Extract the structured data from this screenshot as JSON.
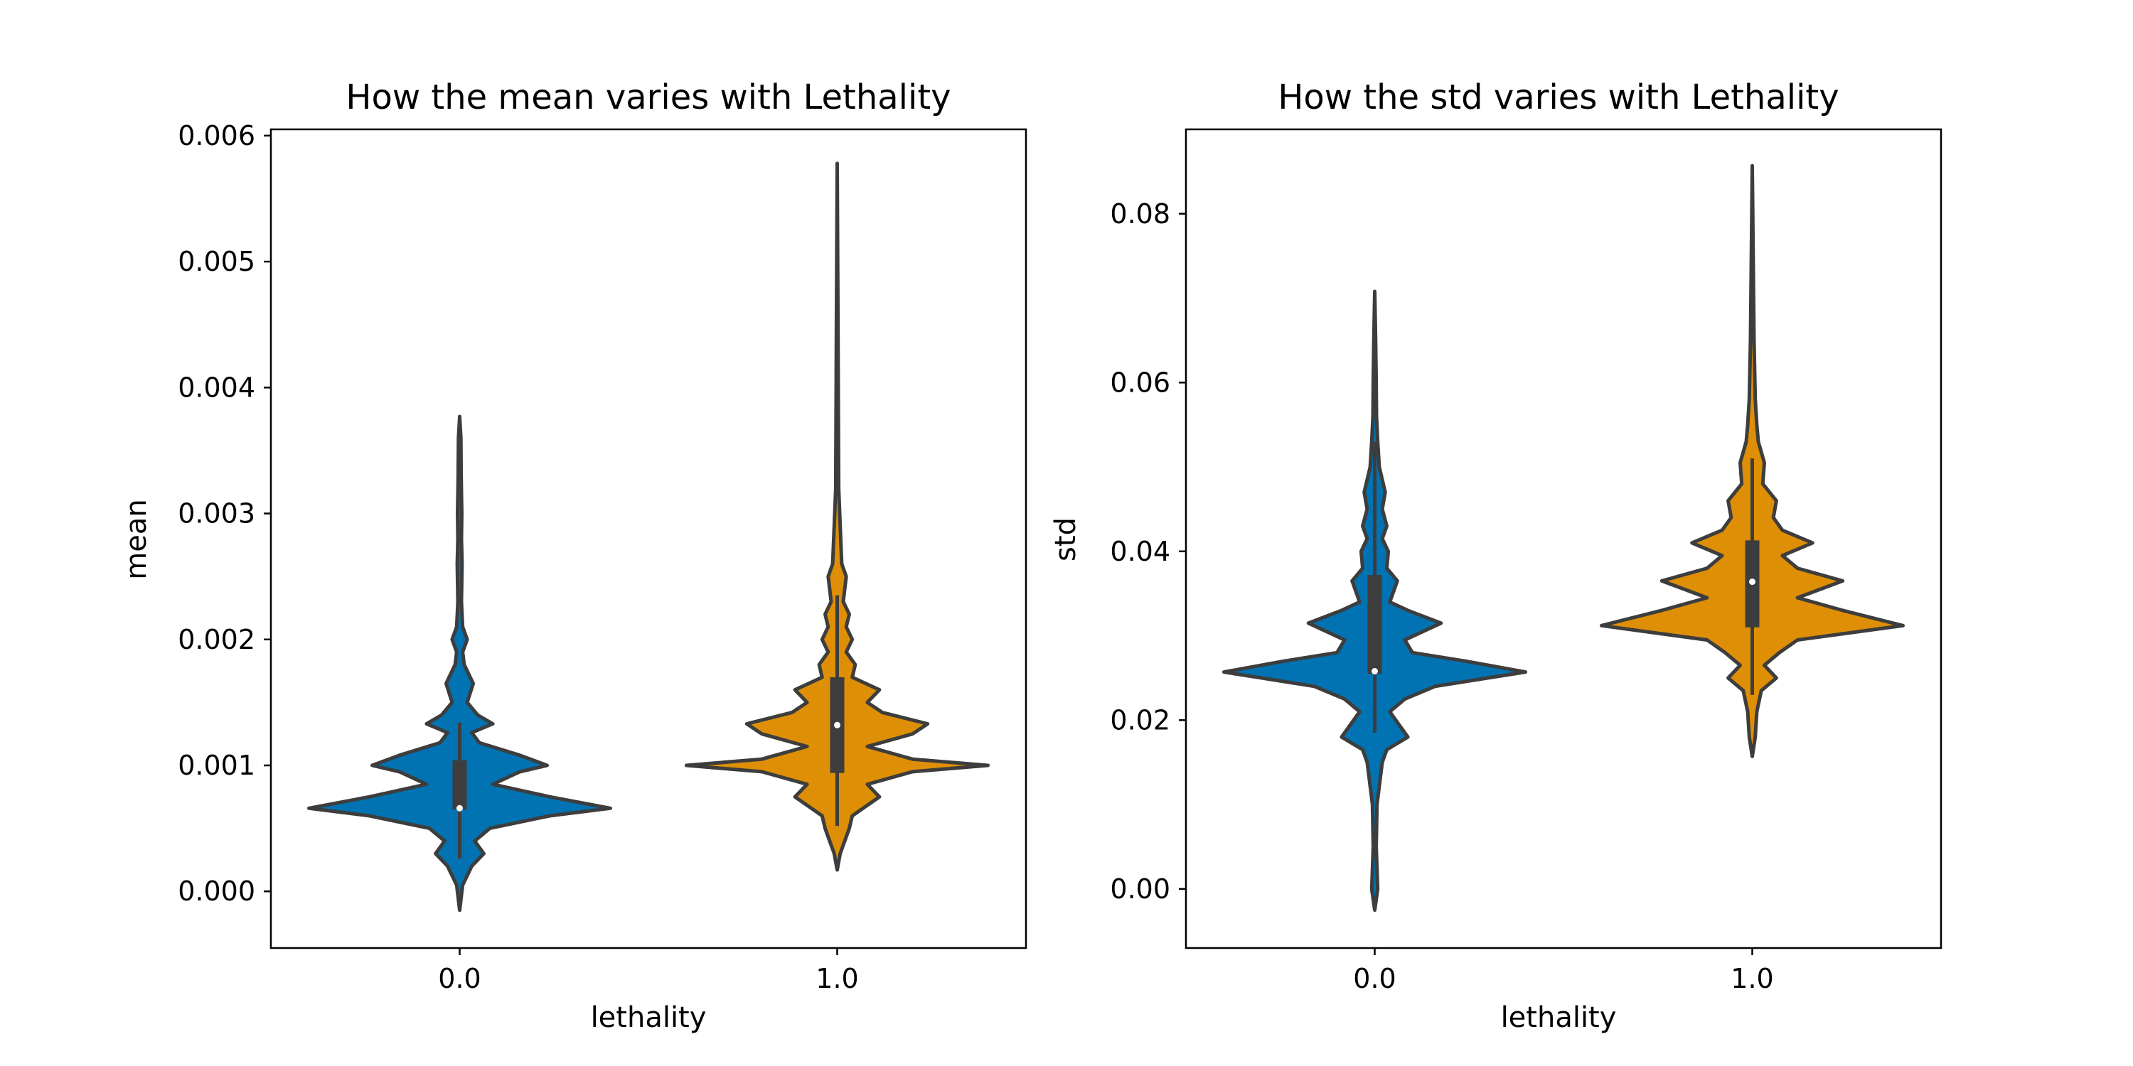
{
  "chart_data": [
    {
      "type": "violin",
      "title": "How the mean varies with Lethality",
      "xlabel": "lethality",
      "ylabel": "mean",
      "categories": [
        "0.0",
        "1.0"
      ],
      "ylim": [
        -0.00045,
        0.00605
      ],
      "yticks": [
        "0.000",
        "0.001",
        "0.002",
        "0.003",
        "0.004",
        "0.005",
        "0.006"
      ],
      "colors": [
        "#0173b2",
        "#de8f05"
      ],
      "series": [
        {
          "category": "0.0",
          "min": 0.00026,
          "q1": 0.00065,
          "median": 0.00066,
          "q3": 0.00104,
          "max": 0.00134,
          "range": [
            -0.00015,
            0.00377
          ],
          "density": [
            [
              -0.00015,
              0.0
            ],
            [
              5e-05,
              0.02
            ],
            [
              0.0002,
              0.08
            ],
            [
              0.0003,
              0.16
            ],
            [
              0.0004,
              0.1
            ],
            [
              0.0005,
              0.2
            ],
            [
              0.0006,
              0.6
            ],
            [
              0.00066,
              1.0
            ],
            [
              0.00075,
              0.6
            ],
            [
              0.00085,
              0.22
            ],
            [
              0.00095,
              0.4
            ],
            [
              0.001,
              0.58
            ],
            [
              0.00108,
              0.4
            ],
            [
              0.00118,
              0.13
            ],
            [
              0.00126,
              0.08
            ],
            [
              0.00133,
              0.22
            ],
            [
              0.0014,
              0.12
            ],
            [
              0.0015,
              0.05
            ],
            [
              0.00165,
              0.09
            ],
            [
              0.0018,
              0.03
            ],
            [
              0.0019,
              0.02
            ],
            [
              0.002,
              0.05
            ],
            [
              0.0021,
              0.02
            ],
            [
              0.0023,
              0.012
            ],
            [
              0.0026,
              0.016
            ],
            [
              0.0028,
              0.012
            ],
            [
              0.003,
              0.014
            ],
            [
              0.0033,
              0.01
            ],
            [
              0.0036,
              0.008
            ],
            [
              0.00377,
              0.0
            ]
          ]
        },
        {
          "category": "1.0",
          "min": 0.00052,
          "q1": 0.00094,
          "median": 0.00132,
          "q3": 0.0017,
          "max": 0.00235,
          "range": [
            0.00017,
            0.00578
          ],
          "density": [
            [
              0.00017,
              0.0
            ],
            [
              0.0003,
              0.02
            ],
            [
              0.0004,
              0.05
            ],
            [
              0.0005,
              0.08
            ],
            [
              0.0006,
              0.1
            ],
            [
              0.00075,
              0.28
            ],
            [
              0.00085,
              0.2
            ],
            [
              0.00095,
              0.5
            ],
            [
              0.001,
              1.0
            ],
            [
              0.00105,
              0.5
            ],
            [
              0.00115,
              0.2
            ],
            [
              0.00125,
              0.5
            ],
            [
              0.00133,
              0.6
            ],
            [
              0.00142,
              0.3
            ],
            [
              0.0015,
              0.2
            ],
            [
              0.0016,
              0.28
            ],
            [
              0.0017,
              0.1
            ],
            [
              0.0018,
              0.12
            ],
            [
              0.0019,
              0.06
            ],
            [
              0.002,
              0.1
            ],
            [
              0.0021,
              0.06
            ],
            [
              0.0022,
              0.08
            ],
            [
              0.0023,
              0.04
            ],
            [
              0.0025,
              0.06
            ],
            [
              0.0026,
              0.03
            ],
            [
              0.0029,
              0.02
            ],
            [
              0.0032,
              0.01
            ],
            [
              0.0037,
              0.008
            ],
            [
              0.0045,
              0.005
            ],
            [
              0.00578,
              0.0
            ]
          ]
        }
      ]
    },
    {
      "type": "violin",
      "title": "How the std varies with Lethality",
      "xlabel": "lethality",
      "ylabel": "std",
      "categories": [
        "0.0",
        "1.0"
      ],
      "ylim": [
        -0.007,
        0.09
      ],
      "yticks": [
        "0.00",
        "0.02",
        "0.04",
        "0.06",
        "0.08"
      ],
      "colors": [
        "#0173b2",
        "#de8f05"
      ],
      "series": [
        {
          "category": "0.0",
          "min": 0.0185,
          "q1": 0.0255,
          "median": 0.0258,
          "q3": 0.0372,
          "max": 0.053,
          "range": [
            -0.0025,
            0.0708
          ],
          "density": [
            [
              -0.0025,
              0.0
            ],
            [
              0.0,
              0.02
            ],
            [
              0.005,
              0.01
            ],
            [
              0.01,
              0.015
            ],
            [
              0.015,
              0.05
            ],
            [
              0.0165,
              0.08
            ],
            [
              0.018,
              0.22
            ],
            [
              0.0195,
              0.16
            ],
            [
              0.021,
              0.1
            ],
            [
              0.0225,
              0.2
            ],
            [
              0.024,
              0.4
            ],
            [
              0.0257,
              1.0
            ],
            [
              0.027,
              0.6
            ],
            [
              0.028,
              0.25
            ],
            [
              0.0295,
              0.2
            ],
            [
              0.0315,
              0.44
            ],
            [
              0.033,
              0.22
            ],
            [
              0.034,
              0.1
            ],
            [
              0.0365,
              0.15
            ],
            [
              0.038,
              0.08
            ],
            [
              0.04,
              0.09
            ],
            [
              0.0415,
              0.05
            ],
            [
              0.043,
              0.08
            ],
            [
              0.045,
              0.05
            ],
            [
              0.047,
              0.07
            ],
            [
              0.05,
              0.03
            ],
            [
              0.053,
              0.02
            ],
            [
              0.056,
              0.012
            ],
            [
              0.06,
              0.01
            ],
            [
              0.065,
              0.006
            ],
            [
              0.0708,
              0.0
            ]
          ]
        },
        {
          "category": "1.0",
          "min": 0.023,
          "q1": 0.031,
          "median": 0.0364,
          "q3": 0.0413,
          "max": 0.051,
          "range": [
            0.0157,
            0.0857
          ],
          "density": [
            [
              0.0157,
              0.0
            ],
            [
              0.018,
              0.02
            ],
            [
              0.021,
              0.03
            ],
            [
              0.0235,
              0.06
            ],
            [
              0.025,
              0.16
            ],
            [
              0.0265,
              0.08
            ],
            [
              0.028,
              0.18
            ],
            [
              0.0295,
              0.3
            ],
            [
              0.0312,
              1.0
            ],
            [
              0.033,
              0.6
            ],
            [
              0.0345,
              0.3
            ],
            [
              0.0365,
              0.6
            ],
            [
              0.038,
              0.3
            ],
            [
              0.0395,
              0.2
            ],
            [
              0.041,
              0.4
            ],
            [
              0.0425,
              0.2
            ],
            [
              0.044,
              0.14
            ],
            [
              0.046,
              0.16
            ],
            [
              0.048,
              0.07
            ],
            [
              0.0505,
              0.08
            ],
            [
              0.053,
              0.04
            ],
            [
              0.055,
              0.03
            ],
            [
              0.058,
              0.02
            ],
            [
              0.065,
              0.012
            ],
            [
              0.075,
              0.006
            ],
            [
              0.0857,
              0.0
            ]
          ]
        }
      ]
    }
  ]
}
